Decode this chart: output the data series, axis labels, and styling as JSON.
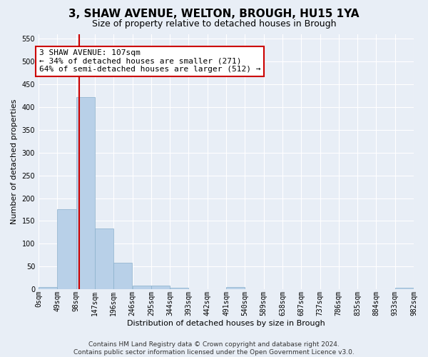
{
  "title": "3, SHAW AVENUE, WELTON, BROUGH, HU15 1YA",
  "subtitle": "Size of property relative to detached houses in Brough",
  "xlabel": "Distribution of detached houses by size in Brough",
  "ylabel": "Number of detached properties",
  "bar_color": "#b8d0e8",
  "bar_edge_color": "#8ab0cc",
  "background_color": "#e8eef6",
  "grid_color": "#ffffff",
  "bin_labels": [
    "0sqm",
    "49sqm",
    "98sqm",
    "147sqm",
    "196sqm",
    "246sqm",
    "295sqm",
    "344sqm",
    "393sqm",
    "442sqm",
    "491sqm",
    "540sqm",
    "589sqm",
    "638sqm",
    "687sqm",
    "737sqm",
    "786sqm",
    "835sqm",
    "884sqm",
    "933sqm",
    "982sqm"
  ],
  "bar_values": [
    5,
    175,
    422,
    133,
    58,
    8,
    8,
    3,
    0,
    0,
    5,
    0,
    0,
    0,
    0,
    0,
    0,
    0,
    0,
    3
  ],
  "property_sqm": 107,
  "bin_width": 49,
  "ylim_max": 560,
  "yticks": [
    0,
    50,
    100,
    150,
    200,
    250,
    300,
    350,
    400,
    450,
    500,
    550
  ],
  "annotation_line1": "3 SHAW AVENUE: 107sqm",
  "annotation_line2": "← 34% of detached houses are smaller (271)",
  "annotation_line3": "64% of semi-detached houses are larger (512) →",
  "ann_box_fc": "#ffffff",
  "ann_box_ec": "#cc0000",
  "red_line_color": "#cc0000",
  "footer": "Contains HM Land Registry data © Crown copyright and database right 2024.\nContains public sector information licensed under the Open Government Licence v3.0.",
  "title_fontsize": 11,
  "subtitle_fontsize": 9,
  "ylabel_fontsize": 8,
  "xlabel_fontsize": 8,
  "tick_fontsize": 7,
  "ann_fontsize": 8,
  "footer_fontsize": 6.5
}
